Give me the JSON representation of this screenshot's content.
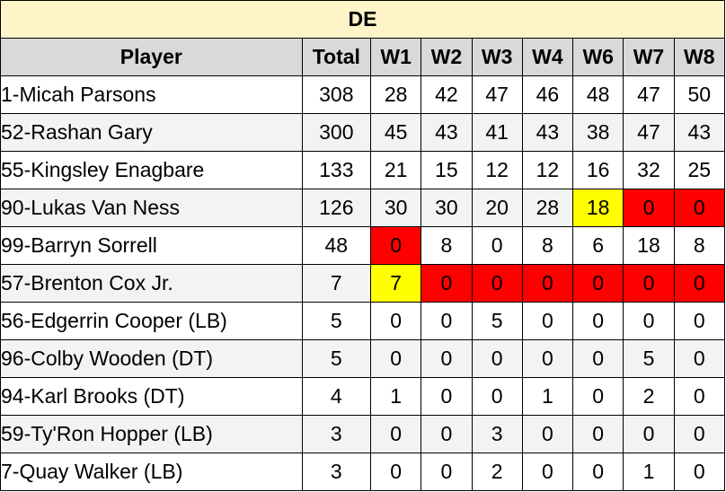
{
  "title": "DE",
  "headers": [
    "Player",
    "Total",
    "W1",
    "W2",
    "W3",
    "W4",
    "W6",
    "W7",
    "W8"
  ],
  "colors": {
    "title_bg": "#fdf4c7",
    "header_bg": "#d9d9d9",
    "alt_row_bg": "#f3f3f3",
    "highlight_yellow": "#ffff00",
    "highlight_red": "#ff0000"
  },
  "rows": [
    {
      "player": "1-Micah Parsons",
      "total": "308",
      "weeks": [
        "28",
        "42",
        "47",
        "46",
        "48",
        "47",
        "50"
      ],
      "highlights": [
        "",
        "",
        "",
        "",
        "",
        "",
        ""
      ]
    },
    {
      "player": "52-Rashan Gary",
      "total": "300",
      "weeks": [
        "45",
        "43",
        "41",
        "43",
        "38",
        "47",
        "43"
      ],
      "highlights": [
        "",
        "",
        "",
        "",
        "",
        "",
        ""
      ]
    },
    {
      "player": "55-Kingsley Enagbare",
      "total": "133",
      "weeks": [
        "21",
        "15",
        "12",
        "12",
        "16",
        "32",
        "25"
      ],
      "highlights": [
        "",
        "",
        "",
        "",
        "",
        "",
        ""
      ]
    },
    {
      "player": "90-Lukas Van Ness",
      "total": "126",
      "weeks": [
        "30",
        "30",
        "20",
        "28",
        "18",
        "0",
        "0"
      ],
      "highlights": [
        "",
        "",
        "",
        "",
        "yellow",
        "red",
        "red"
      ]
    },
    {
      "player": "99-Barryn Sorrell",
      "total": "48",
      "weeks": [
        "0",
        "8",
        "0",
        "8",
        "6",
        "18",
        "8"
      ],
      "highlights": [
        "red",
        "",
        "",
        "",
        "",
        "",
        ""
      ]
    },
    {
      "player": "57-Brenton Cox Jr.",
      "total": "7",
      "weeks": [
        "7",
        "0",
        "0",
        "0",
        "0",
        "0",
        "0"
      ],
      "highlights": [
        "yellow",
        "red",
        "red",
        "red",
        "red",
        "red",
        "red"
      ]
    },
    {
      "player": "56-Edgerrin Cooper (LB)",
      "total": "5",
      "weeks": [
        "0",
        "0",
        "5",
        "0",
        "0",
        "0",
        "0"
      ],
      "highlights": [
        "",
        "",
        "",
        "",
        "",
        "",
        ""
      ]
    },
    {
      "player": "96-Colby Wooden (DT)",
      "total": "5",
      "weeks": [
        "0",
        "0",
        "0",
        "0",
        "0",
        "5",
        "0"
      ],
      "highlights": [
        "",
        "",
        "",
        "",
        "",
        "",
        ""
      ]
    },
    {
      "player": "94-Karl Brooks (DT)",
      "total": "4",
      "weeks": [
        "1",
        "0",
        "0",
        "1",
        "0",
        "2",
        "0"
      ],
      "highlights": [
        "",
        "",
        "",
        "",
        "",
        "",
        ""
      ]
    },
    {
      "player": "59-Ty'Ron Hopper (LB)",
      "total": "3",
      "weeks": [
        "0",
        "0",
        "3",
        "0",
        "0",
        "0",
        "0"
      ],
      "highlights": [
        "",
        "",
        "",
        "",
        "",
        "",
        ""
      ]
    },
    {
      "player": "7-Quay Walker (LB)",
      "total": "3",
      "weeks": [
        "0",
        "0",
        "2",
        "0",
        "0",
        "1",
        "0"
      ],
      "highlights": [
        "",
        "",
        "",
        "",
        "",
        "",
        ""
      ]
    }
  ]
}
